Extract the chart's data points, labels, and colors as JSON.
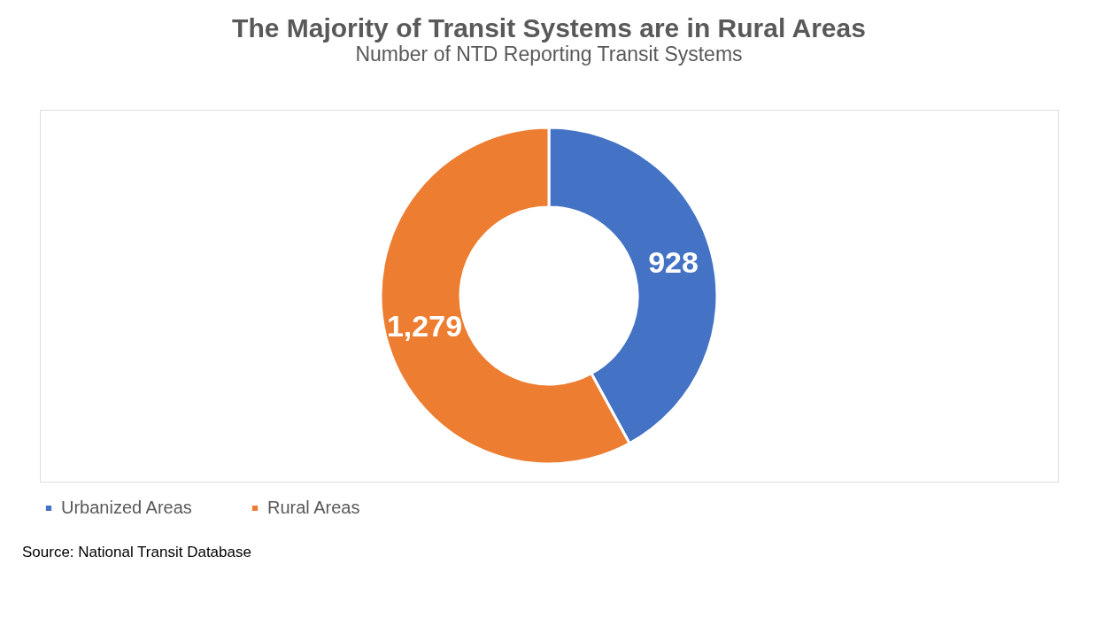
{
  "chart_data": {
    "type": "donut",
    "title": "The Majority of Transit Systems are in Rural Areas",
    "subtitle": "Number of NTD Reporting Transit Systems",
    "categories": [
      "Urbanized Areas",
      "Rural Areas"
    ],
    "values": [
      928,
      1279
    ],
    "colors": [
      "#4472c4",
      "#ed7d31"
    ],
    "value_labels": [
      "928",
      "1,279"
    ],
    "legend": "bottom",
    "annotations": [
      "Source: National Transit Database"
    ]
  }
}
